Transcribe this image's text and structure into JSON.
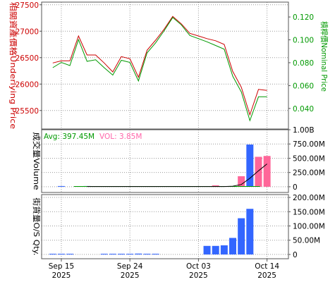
{
  "chart_data": [
    {
      "type": "line",
      "panel": "price",
      "ylabel_left": "相關資產價格Underlying Price",
      "ylabel_right": "槓桿價Nominal Price",
      "left_axis": {
        "range": [
          25150,
          27550
        ],
        "ticks": [
          25500,
          26000,
          26500,
          27000,
          27500
        ],
        "tick_labels": [
          "25500",
          "26000",
          "26500",
          "27000",
          "27500"
        ]
      },
      "right_axis": {
        "range": [
          0.022,
          0.133
        ],
        "ticks": [
          0.04,
          0.06,
          0.08,
          0.1,
          0.12
        ],
        "tick_labels": [
          "0.040",
          "0.060",
          "0.080",
          "0.100",
          "0.120"
        ]
      },
      "grid": true,
      "x_days": [
        0,
        1,
        2,
        3,
        4,
        5,
        6,
        7,
        8,
        9,
        10,
        11,
        12,
        13,
        14,
        15,
        16,
        17,
        18,
        19,
        20,
        21,
        22,
        23,
        24,
        25,
        26,
        27
      ],
      "series": [
        {
          "axis": "left",
          "color": "#cc0000",
          "values": [
            26400,
            26440,
            26440,
            26910,
            26550,
            26550,
            26400,
            26230,
            26520,
            26480,
            26130,
            26640,
            26830,
            27040,
            27280,
            27140,
            26960,
            26910,
            26860,
            26820,
            26750,
            26240,
            25940,
            25420,
            25900,
            25880,
            null,
            null
          ]
        },
        {
          "axis": "left",
          "color": "#009900",
          "values": [
            26310,
            26410,
            26350,
            26840,
            26430,
            26460,
            26310,
            26170,
            26450,
            26410,
            26060,
            26590,
            26780,
            27010,
            27260,
            27120,
            26920,
            26860,
            26800,
            26730,
            26660,
            26150,
            25850,
            25310,
            25760,
            25760,
            null,
            null
          ]
        }
      ]
    },
    {
      "type": "bar",
      "panel": "volume",
      "ylabel": "成交量Volume",
      "annotations": {
        "avg": "Avg: 397.45M",
        "vol": "VOL: 3.85M"
      },
      "axis": {
        "range": [
          -100,
          1000
        ],
        "ticks": [
          0,
          250,
          500,
          750,
          1000
        ],
        "tick_labels": [
          "0",
          "250.00M",
          "500.00M",
          "750.00M",
          "1.00B"
        ]
      },
      "grid": true,
      "x_days": [
        0,
        1,
        2,
        3,
        4,
        5,
        6,
        7,
        8,
        9,
        10,
        11,
        12,
        13,
        14,
        15,
        16,
        17,
        18,
        19,
        20,
        21,
        22,
        23,
        24,
        25
      ],
      "bar_colors": {
        "up": "#ff6699",
        "down": "#3366ff"
      },
      "bars": [
        {
          "day": 1,
          "value": 6,
          "color": "down"
        },
        {
          "day": 4,
          "value": 2,
          "color": "down"
        },
        {
          "day": 19,
          "value": 25,
          "color": "up"
        },
        {
          "day": 22,
          "value": 185,
          "color": "up"
        },
        {
          "day": 23,
          "value": 740,
          "color": "down"
        },
        {
          "day": 24,
          "value": 525,
          "color": "up"
        },
        {
          "day": 25,
          "value": 540,
          "color": "up"
        }
      ],
      "avg_line": {
        "color": "#000000",
        "values": [
          null,
          null,
          null,
          null,
          4,
          4,
          4,
          4,
          4,
          4,
          4,
          4,
          4,
          4,
          4,
          4,
          4,
          4,
          4,
          4,
          4,
          10,
          40,
          150,
          280,
          400
        ]
      },
      "baseline": {
        "color": "#009900",
        "value": 5
      }
    },
    {
      "type": "bar",
      "panel": "outstanding",
      "ylabel": "街貨量O/S Qty.",
      "axis": {
        "range": [
          -15,
          210
        ],
        "ticks": [
          0,
          50,
          100,
          150,
          200
        ],
        "tick_labels": [
          "0",
          "50.00M",
          "100.00M",
          "150.00M",
          "200.00M"
        ]
      },
      "grid": true,
      "color": "#3366ff",
      "x_days": [
        0,
        1,
        2,
        3,
        4,
        5,
        6,
        7,
        8,
        9,
        10,
        11,
        12,
        13,
        14,
        15,
        16,
        17,
        18,
        19,
        20,
        21,
        22,
        23,
        24,
        25
      ],
      "values": [
        1,
        1,
        1,
        null,
        null,
        null,
        1,
        1,
        1,
        1,
        3,
        1,
        1,
        null,
        null,
        null,
        null,
        null,
        30,
        30,
        32,
        58,
        127,
        160,
        null,
        null
      ]
    }
  ],
  "x_axis": {
    "tick_days": [
      1,
      9,
      17,
      25
    ],
    "tick_labels": [
      [
        "Sep 15",
        "2025"
      ],
      [
        "Sep 24",
        "2025"
      ],
      [
        "Oct 03",
        "2025"
      ],
      [
        "Oct 14",
        "2025"
      ]
    ]
  }
}
